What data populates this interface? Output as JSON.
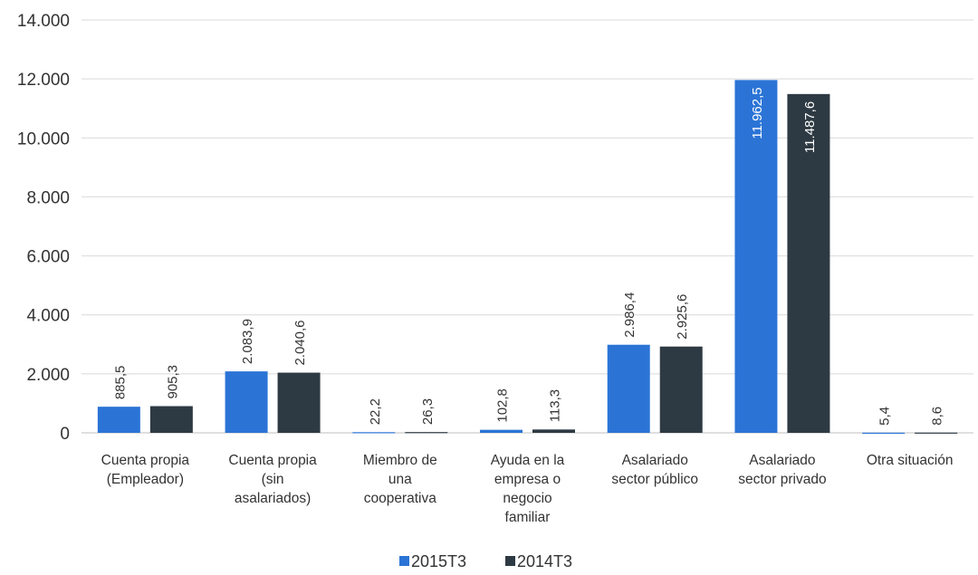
{
  "chart_data": {
    "type": "bar",
    "title": "",
    "xlabel": "",
    "ylabel": "",
    "ylim": [
      0,
      14000
    ],
    "yticks": [
      0,
      2000,
      4000,
      6000,
      8000,
      10000,
      12000,
      14000
    ],
    "ytick_labels": [
      "0",
      "2.000",
      "4.000",
      "6.000",
      "8.000",
      "10.000",
      "12.000",
      "14.000"
    ],
    "grid": true,
    "legend_position": "bottom",
    "categories": [
      [
        "Cuenta propia",
        "(Empleador)"
      ],
      [
        "Cuenta propia",
        "(sin",
        "asalariados)"
      ],
      [
        "Miembro de",
        "una",
        "cooperativa"
      ],
      [
        "Ayuda en la",
        "empresa o",
        "negocio",
        "familiar"
      ],
      [
        "Asalariado",
        "sector público"
      ],
      [
        "Asalariado",
        "sector privado"
      ],
      [
        "Otra situación"
      ]
    ],
    "series": [
      {
        "name": "2015T3",
        "color": "#2B74D6",
        "values": [
          885.5,
          2083.9,
          22.2,
          102.8,
          2986.4,
          11962.5,
          5.4
        ],
        "labels": [
          "885,5",
          "2.083,9",
          "22,2",
          "102,8",
          "2.986,4",
          "11.962,5",
          "5,4"
        ]
      },
      {
        "name": "2014T3",
        "color": "#2E3A43",
        "values": [
          905.3,
          2040.6,
          26.3,
          113.3,
          2925.6,
          11487.6,
          8.6
        ],
        "labels": [
          "905,3",
          "2.040,6",
          "26,3",
          "113,3",
          "2.925,6",
          "11.487,6",
          "8,6"
        ]
      }
    ]
  },
  "colors": {
    "grid": "#D9D9D9",
    "axis": "#BFBFBF",
    "text": "#333333",
    "label_inside": "#FFFFFF"
  }
}
